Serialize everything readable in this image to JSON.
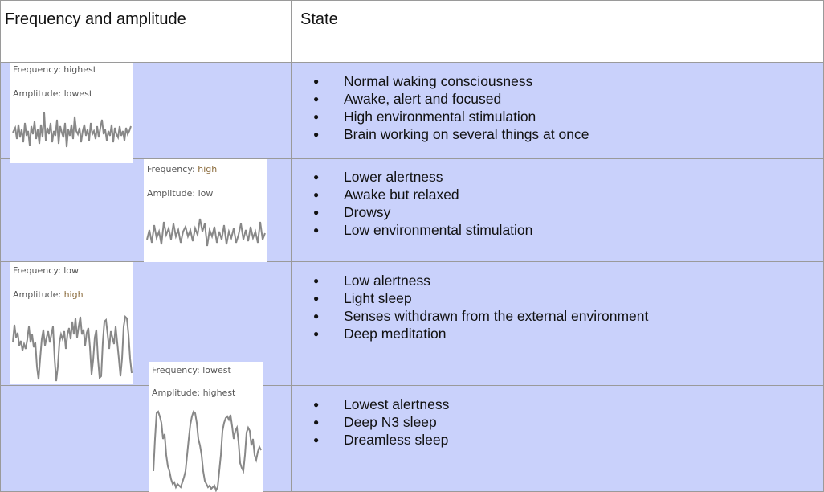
{
  "header": {
    "col1": "Frequency and amplitude",
    "col2": "State"
  },
  "rows": [
    {
      "frequency_label": "Frequency:",
      "frequency": "highest",
      "amplitude_label": "Amplitude:",
      "amplitude": "lowest",
      "states": [
        "Normal waking consciousness",
        "Awake, alert and focused",
        "High environmental stimulation",
        "Brain working on several things at once"
      ]
    },
    {
      "frequency_label": "Frequency:",
      "frequency": "high",
      "amplitude_label": "Amplitude:",
      "amplitude": "low",
      "states": [
        "Lower alertness",
        "Awake but relaxed",
        "Drowsy",
        "Low environmental stimulation"
      ]
    },
    {
      "frequency_label": "Frequency:",
      "frequency": "low",
      "amplitude_label": "Amplitude:",
      "amplitude": "high",
      "states": [
        "Low alertness",
        "Light sleep",
        "Senses withdrawn from the external environment",
        "Deep meditation"
      ]
    },
    {
      "frequency_label": "Frequency:",
      "frequency": "lowest",
      "amplitude_label": "Amplitude:",
      "amplitude": "highest",
      "states": [
        "Lowest alertness",
        "Deep N3 sleep",
        "Dreamless sleep"
      ]
    }
  ],
  "colors": {
    "row_fill": "#c9d1fb",
    "grid": "#9a9a9a",
    "wave": "#888888"
  }
}
